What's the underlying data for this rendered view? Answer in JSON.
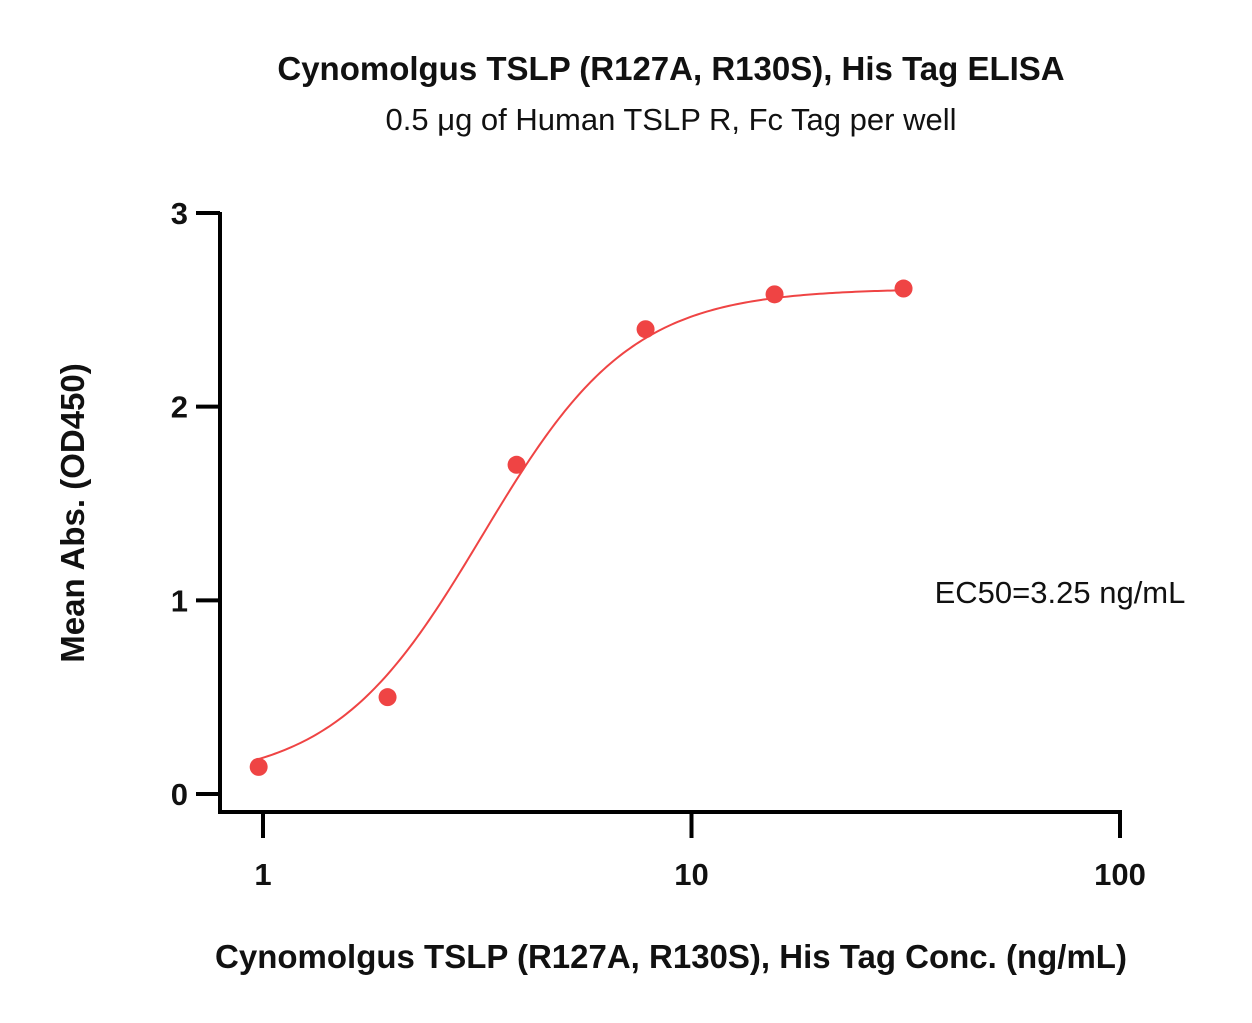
{
  "chart_data": {
    "type": "scatter",
    "title": "Cynomolgus TSLP (R127A, R130S), His Tag ELISA",
    "subtitle": "0.5 μg of Human TSLP R, Fc Tag per well",
    "xlabel": "Cynomolgus TSLP (R127A, R130S), His Tag Conc. (ng/mL)",
    "ylabel": "Mean Abs. (OD450)",
    "x_scale": "log",
    "xlim": [
      0.9,
      100
    ],
    "ylim": [
      -0.1,
      3
    ],
    "x_ticks": [
      1,
      10,
      100
    ],
    "x_tick_labels": [
      "1",
      "10",
      "100"
    ],
    "y_ticks": [
      0,
      1,
      2,
      3
    ],
    "y_tick_labels": [
      "0",
      "1",
      "2",
      "3"
    ],
    "grid": false,
    "color": "#EF4444",
    "series": [
      {
        "x": [
          0.977,
          1.953,
          3.906,
          7.813,
          15.625,
          31.25
        ],
        "y": [
          0.14,
          0.5,
          1.7,
          2.4,
          2.58,
          2.61
        ],
        "fit": "4PL"
      }
    ],
    "annotation": "EC50=3.25 ng/mL"
  }
}
